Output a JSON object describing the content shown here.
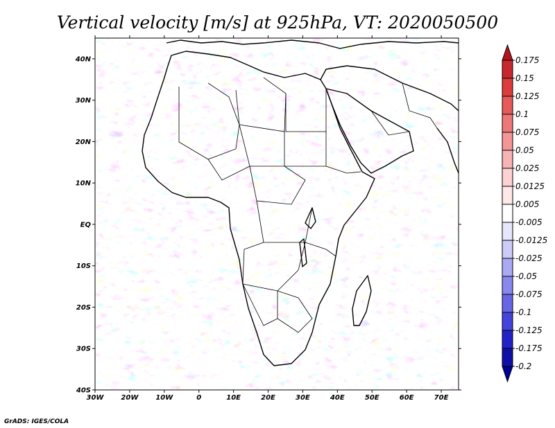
{
  "title": "Vertical velocity [m/s] at 925hPa, VT: 2020050500",
  "credit": "GrADS: IGES/COLA",
  "map": {
    "lon_range": [
      -30,
      75
    ],
    "lat_range": [
      -40,
      45
    ],
    "lon_ticks": [
      {
        "value": -30,
        "label": "30W"
      },
      {
        "value": -20,
        "label": "20W"
      },
      {
        "value": -10,
        "label": "10W"
      },
      {
        "value": 0,
        "label": "0"
      },
      {
        "value": 10,
        "label": "10E"
      },
      {
        "value": 20,
        "label": "20E"
      },
      {
        "value": 30,
        "label": "30E"
      },
      {
        "value": 40,
        "label": "40E"
      },
      {
        "value": 50,
        "label": "50E"
      },
      {
        "value": 60,
        "label": "60E"
      },
      {
        "value": 70,
        "label": "70E"
      }
    ],
    "lat_ticks": [
      {
        "value": 40,
        "label": "40N"
      },
      {
        "value": 30,
        "label": "30N"
      },
      {
        "value": 20,
        "label": "20N"
      },
      {
        "value": 10,
        "label": "10N"
      },
      {
        "value": 0,
        "label": "EQ"
      },
      {
        "value": -10,
        "label": "10S"
      },
      {
        "value": -20,
        "label": "20S"
      },
      {
        "value": -30,
        "label": "30S"
      },
      {
        "value": -40,
        "label": "40S"
      }
    ]
  },
  "colorbar": {
    "labels": [
      "0.175",
      "0.15",
      "0.125",
      "0.1",
      "0.075",
      "0.05",
      "0.025",
      "0.0125",
      "0.005",
      "-0.005",
      "-0.0125",
      "-0.025",
      "-0.05",
      "-0.075",
      "-0.1",
      "-0.125",
      "-0.175",
      "-0.2"
    ],
    "colors": [
      "#b4141e",
      "#c8282d",
      "#dc3c3c",
      "#e65a5a",
      "#ee7878",
      "#f49696",
      "#f8b4b4",
      "#fcd2d2",
      "#fee8e8",
      "#ffffff",
      "#e6e6fc",
      "#ccccf8",
      "#aaaaf4",
      "#8888ee",
      "#6666e6",
      "#4444dc",
      "#2222c8",
      "#1010a8",
      "#000096"
    ]
  }
}
